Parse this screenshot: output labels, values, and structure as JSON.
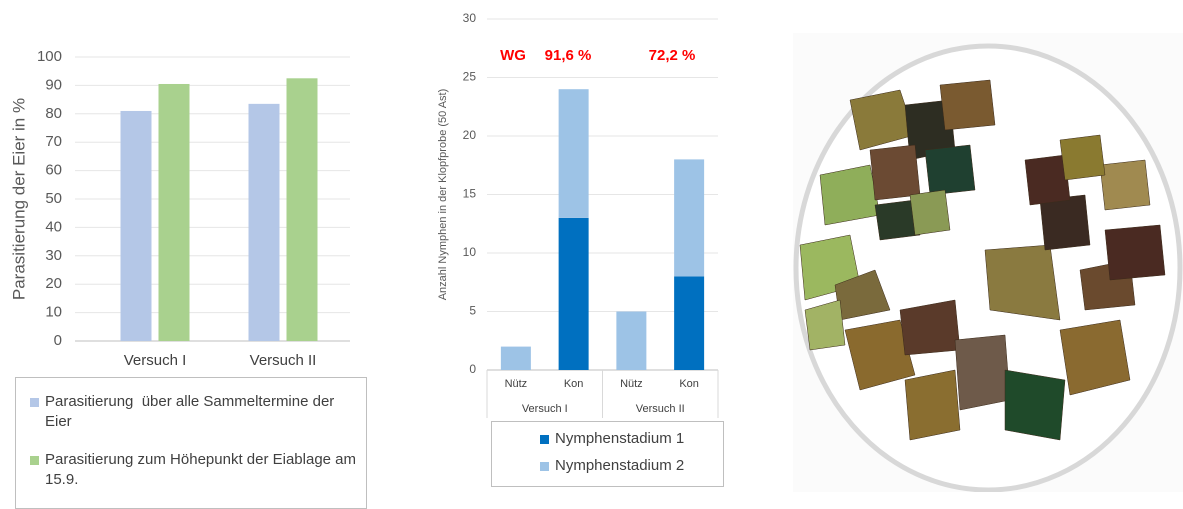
{
  "chart_data": [
    {
      "type": "bar",
      "y_label": "Parasitierung der Eier in %",
      "categories": [
        "Versuch I",
        "Versuch II"
      ],
      "series": [
        {
          "name": "Parasitierung  über alle Sammeltermine der Eier",
          "color": "#b4c7e7",
          "values": [
            81,
            83.5
          ]
        },
        {
          "name": "Parasitierung zum Höhepunkt der Eiablage am 15.9.",
          "color": "#a9d18e",
          "values": [
            90.5,
            92.5
          ]
        }
      ],
      "ylim": [
        0,
        100
      ],
      "yticks": [
        0,
        10,
        20,
        30,
        40,
        50,
        60,
        70,
        80,
        90,
        100
      ],
      "grid": true
    },
    {
      "type": "stacked_bar",
      "y_label": "Anzahl Nymphen in der Klopfprobe (50 Ast)",
      "categories": [
        "Nütz",
        "Kon",
        "Nütz",
        "Kon"
      ],
      "groups": [
        "Versuch I",
        "Versuch II"
      ],
      "series": [
        {
          "name": "Nymphenstadium 1",
          "color": "#0070c0",
          "values": [
            0,
            13,
            0,
            8
          ]
        },
        {
          "name": "Nymphenstadium 2",
          "color": "#9dc3e6",
          "values": [
            2,
            11,
            5,
            10
          ]
        }
      ],
      "annotations": [
        "WG",
        "91,6 %",
        "72,2 %"
      ],
      "ylim": [
        0,
        30
      ],
      "yticks": [
        0,
        5,
        10,
        15,
        20,
        25,
        30
      ],
      "grid": true
    }
  ]
}
